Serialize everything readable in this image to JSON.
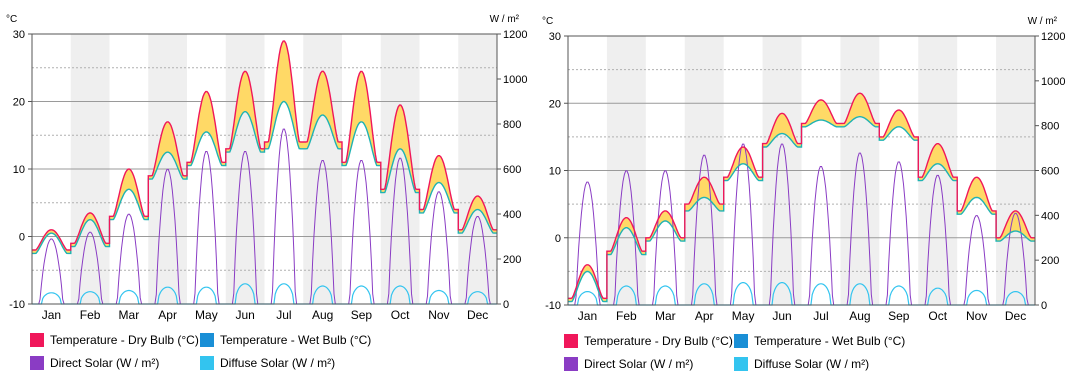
{
  "colors": {
    "dry_bulb": "#f0175a",
    "wet_bulb": "#1a8fd6",
    "direct_solar": "#8a3cc4",
    "diffuse_solar": "#33c4ef",
    "fill_band": "#ffd966"
  },
  "legend": {
    "dry_bulb": "Temperature - Dry Bulb (°C)",
    "wet_bulb": "Temperature - Wet Bulb (°C)",
    "direct_solar": "Direct Solar (W / m²)",
    "diffuse_solar": "Diffuse Solar (W / m²)"
  },
  "chart_data": [
    {
      "type": "line",
      "y_left_unit": "°C",
      "y_right_unit": "W / m²",
      "y_left_lim": [
        -10,
        30
      ],
      "y_left_ticks": [
        "30",
        "20",
        "10",
        "0",
        "-10"
      ],
      "y_right_lim": [
        0,
        1200
      ],
      "y_right_ticks": [
        "1200",
        "1000",
        "800",
        "600",
        "400",
        "200",
        "0"
      ],
      "months": [
        "Jan",
        "Feb",
        "Mar",
        "Apr",
        "May",
        "Jun",
        "Jul",
        "Aug",
        "Sep",
        "Oct",
        "Nov",
        "Dec"
      ],
      "series": [
        {
          "name": "Temperature - Dry Bulb (°C)",
          "monthly_low": [
            -2,
            -1,
            3,
            9,
            11,
            13,
            14,
            14,
            11,
            7,
            4,
            1
          ],
          "monthly_peak": [
            1,
            3.5,
            10,
            17,
            21.5,
            24.5,
            29,
            24.5,
            24.5,
            19.5,
            12,
            6
          ]
        },
        {
          "name": "Temperature - Wet Bulb (°C)",
          "monthly_low": [
            -2.5,
            -1.5,
            2.5,
            8.5,
            10.5,
            12.5,
            13,
            13,
            10.5,
            6.5,
            3.5,
            0.5
          ],
          "monthly_peak": [
            0.5,
            2.5,
            7,
            12.5,
            15.5,
            18.5,
            20,
            18,
            17,
            13,
            8,
            4
          ]
        },
        {
          "name": "Direct Solar (W / m²)",
          "monthly_peak": [
            290,
            320,
            400,
            600,
            680,
            680,
            780,
            640,
            640,
            650,
            500,
            390
          ]
        },
        {
          "name": "Diffuse Solar (W / m²)",
          "monthly_peak": [
            50,
            55,
            60,
            75,
            75,
            90,
            90,
            80,
            80,
            80,
            60,
            55
          ]
        }
      ]
    },
    {
      "type": "line",
      "y_left_unit": "°C",
      "y_right_unit": "W / m²",
      "y_left_lim": [
        -10,
        30
      ],
      "y_left_ticks": [
        "30",
        "20",
        "10",
        "0",
        "-10"
      ],
      "y_right_lim": [
        0,
        1200
      ],
      "y_right_ticks": [
        "1200",
        "1000",
        "800",
        "600",
        "400",
        "200",
        "0"
      ],
      "months": [
        "Jan",
        "Feb",
        "Mar",
        "Apr",
        "May",
        "Jun",
        "Jul",
        "Aug",
        "Sep",
        "Oct",
        "Nov",
        "Dec"
      ],
      "series": [
        {
          "name": "Temperature - Dry Bulb (°C)",
          "monthly_low": [
            -9,
            -2,
            0,
            5,
            9,
            14,
            17,
            17,
            15,
            9,
            4,
            0
          ],
          "monthly_peak": [
            -4,
            3,
            4,
            9,
            13.5,
            18.5,
            20.5,
            21.5,
            19,
            14,
            9,
            4
          ]
        },
        {
          "name": "Temperature - Wet Bulb (°C)",
          "monthly_low": [
            -9.5,
            -2.5,
            -0.5,
            4,
            8.5,
            13.5,
            16.5,
            16.5,
            14.5,
            8.5,
            3.5,
            -0.5
          ],
          "monthly_peak": [
            -5,
            1.5,
            2.5,
            6,
            11,
            15.5,
            17.5,
            18,
            16.5,
            11,
            6,
            1
          ]
        },
        {
          "name": "Direct Solar (W / m²)",
          "monthly_peak": [
            550,
            600,
            600,
            670,
            720,
            720,
            620,
            680,
            640,
            580,
            400,
            410
          ]
        },
        {
          "name": "Diffuse Solar (W / m²)",
          "monthly_peak": [
            60,
            85,
            85,
            95,
            100,
            100,
            95,
            95,
            85,
            75,
            65,
            60
          ]
        }
      ]
    }
  ]
}
